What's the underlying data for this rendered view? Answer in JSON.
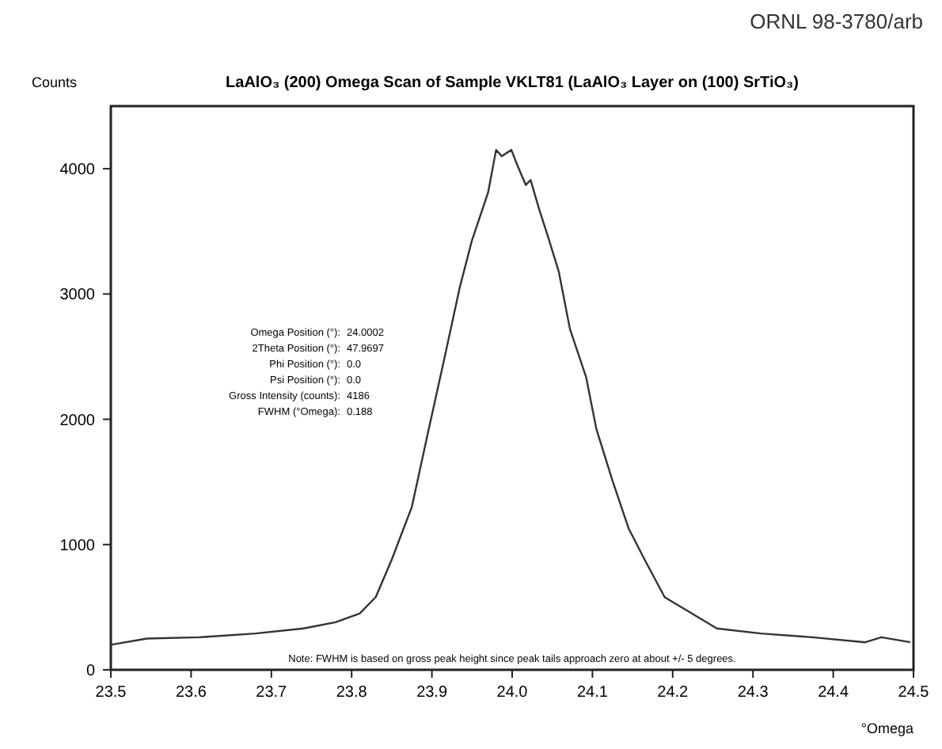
{
  "chart_data": {
    "type": "line",
    "title": "LaAlO₃ (200) Omega Scan of Sample VKLT81 (LaAlO₃ Layer on (100) SrTiO₃)",
    "xlabel": "°Omega",
    "ylabel": "Counts",
    "x": [
      23.5,
      23.545,
      23.61,
      23.68,
      23.74,
      23.78,
      23.81,
      23.83,
      23.85,
      23.875,
      23.895,
      23.915,
      23.935,
      23.95,
      23.97,
      23.98,
      23.987,
      23.999,
      24.007,
      24.017,
      24.023,
      24.033,
      24.045,
      24.058,
      24.072,
      24.092,
      24.105,
      24.125,
      24.145,
      24.165,
      24.19,
      24.216,
      24.255,
      24.31,
      24.374,
      24.44,
      24.46,
      24.496
    ],
    "series": [
      {
        "color": "#333333",
        "values": [
          200,
          250,
          260,
          290,
          330,
          380,
          450,
          580,
          880,
          1300,
          1890,
          2470,
          3060,
          3430,
          3810,
          4150,
          4100,
          4150,
          4020,
          3870,
          3910,
          3690,
          3450,
          3180,
          2720,
          2340,
          1920,
          1510,
          1130,
          880,
          580,
          480,
          330,
          290,
          260,
          220,
          260,
          220
        ]
      }
    ],
    "xlim": [
      23.5,
      24.5
    ],
    "ylim": [
      0,
      4500
    ],
    "xticks": [
      {
        "value": 23.5,
        "label": "23.5"
      },
      {
        "value": 23.6,
        "label": "23.6"
      },
      {
        "value": 23.7,
        "label": "23.7"
      },
      {
        "value": 23.8,
        "label": "23.8"
      },
      {
        "value": 23.9,
        "label": "23.9"
      },
      {
        "value": 24.0,
        "label": "24.0"
      },
      {
        "value": 24.1,
        "label": "24.1"
      },
      {
        "value": 24.2,
        "label": "24.2"
      },
      {
        "value": 24.3,
        "label": "24.3"
      },
      {
        "value": 24.4,
        "label": "24.4"
      },
      {
        "value": 24.5,
        "label": "24.5"
      }
    ],
    "yticks": [
      0,
      1000,
      2000,
      3000,
      4000
    ],
    "grid": false,
    "marker": "none",
    "line_style": "solid",
    "annotations": [
      "ORNL 98-3780/arb",
      "Omega Position (°): 24.0002",
      "2Theta Position (°): 47.9697",
      "Phi Position (°): 0.0",
      "Psi Position (°): 0.0",
      "Gross Intensity (counts): 4186",
      "FWHM (°Omega): 0.188",
      "Note:  FWHM is based on gross peak height since peak tails approach zero at about +/- 5 degrees."
    ]
  }
}
